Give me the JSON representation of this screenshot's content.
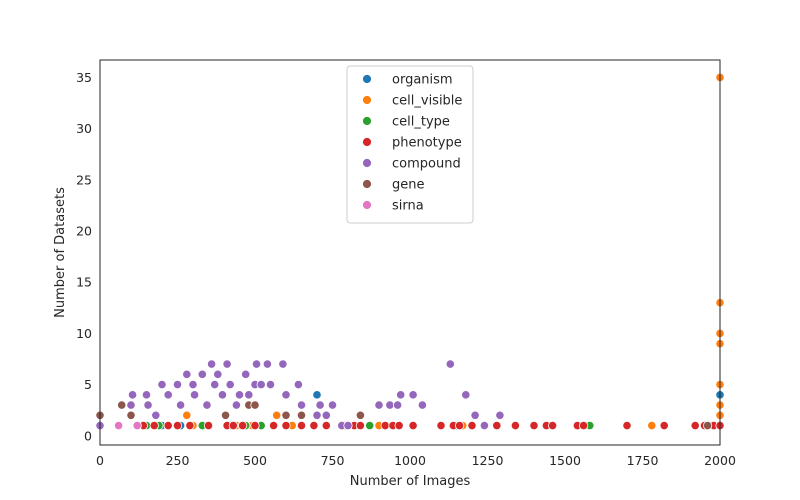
{
  "chart_data": {
    "type": "scatter",
    "title": "",
    "xlabel": "Number of Images",
    "ylabel": "Number of Datasets",
    "xlim": [
      0,
      2000
    ],
    "ylim": [
      -0.9,
      36.7
    ],
    "xticks": [
      "0",
      "250",
      "500",
      "750",
      "1000",
      "1250",
      "1500",
      "1750",
      "2000"
    ],
    "yticks": [
      "0",
      "5",
      "10",
      "15",
      "20",
      "25",
      "30",
      "35"
    ],
    "grid": false,
    "legend": "upper-center",
    "series": [
      {
        "name": "organism",
        "color": "#1f77b4",
        "points": [
          [
            200,
            1
          ],
          [
            260,
            1
          ],
          [
            300,
            1
          ],
          [
            420,
            1
          ],
          [
            700,
            4
          ],
          [
            1150,
            1
          ],
          [
            2000,
            4
          ],
          [
            2000,
            1
          ]
        ]
      },
      {
        "name": "cell_visible",
        "color": "#ff7f0e",
        "points": [
          [
            280,
            2
          ],
          [
            300,
            1
          ],
          [
            440,
            1
          ],
          [
            460,
            1
          ],
          [
            490,
            1
          ],
          [
            570,
            2
          ],
          [
            620,
            1
          ],
          [
            780,
            1
          ],
          [
            900,
            1
          ],
          [
            1170,
            1
          ],
          [
            1780,
            1
          ],
          [
            2000,
            35
          ],
          [
            2000,
            13
          ],
          [
            2000,
            10
          ],
          [
            2000,
            9
          ],
          [
            2000,
            5
          ],
          [
            2000,
            3
          ],
          [
            2000,
            2
          ],
          [
            2000,
            1
          ]
        ]
      },
      {
        "name": "cell_type",
        "color": "#2ca02c",
        "points": [
          [
            150,
            1
          ],
          [
            190,
            1
          ],
          [
            330,
            1
          ],
          [
            470,
            1
          ],
          [
            520,
            1
          ],
          [
            870,
            1
          ],
          [
            1580,
            1
          ]
        ]
      },
      {
        "name": "phenotype",
        "color": "#d62728",
        "points": [
          [
            140,
            1
          ],
          [
            175,
            1
          ],
          [
            220,
            1
          ],
          [
            250,
            1
          ],
          [
            290,
            1
          ],
          [
            350,
            1
          ],
          [
            410,
            1
          ],
          [
            430,
            1
          ],
          [
            460,
            1
          ],
          [
            500,
            1
          ],
          [
            560,
            1
          ],
          [
            600,
            1
          ],
          [
            650,
            1
          ],
          [
            690,
            1
          ],
          [
            730,
            1
          ],
          [
            790,
            1
          ],
          [
            820,
            1
          ],
          [
            840,
            1
          ],
          [
            920,
            1
          ],
          [
            945,
            1
          ],
          [
            965,
            1
          ],
          [
            1010,
            1
          ],
          [
            1100,
            1
          ],
          [
            1140,
            1
          ],
          [
            1160,
            1
          ],
          [
            1200,
            1
          ],
          [
            1280,
            1
          ],
          [
            1340,
            1
          ],
          [
            1400,
            1
          ],
          [
            1440,
            1
          ],
          [
            1460,
            1
          ],
          [
            1540,
            1
          ],
          [
            1560,
            1
          ],
          [
            1700,
            1
          ],
          [
            1820,
            1
          ],
          [
            1920,
            1
          ],
          [
            1950,
            1
          ],
          [
            1980,
            1
          ],
          [
            2000,
            1
          ]
        ]
      },
      {
        "name": "compound",
        "color": "#9467bd",
        "points": [
          [
            0,
            1
          ],
          [
            100,
            3
          ],
          [
            105,
            4
          ],
          [
            150,
            4
          ],
          [
            155,
            3
          ],
          [
            180,
            2
          ],
          [
            200,
            5
          ],
          [
            220,
            4
          ],
          [
            250,
            5
          ],
          [
            260,
            3
          ],
          [
            280,
            6
          ],
          [
            300,
            5
          ],
          [
            305,
            4
          ],
          [
            330,
            6
          ],
          [
            345,
            3
          ],
          [
            360,
            7
          ],
          [
            370,
            5
          ],
          [
            380,
            6
          ],
          [
            395,
            4
          ],
          [
            410,
            7
          ],
          [
            420,
            5
          ],
          [
            440,
            3
          ],
          [
            450,
            4
          ],
          [
            470,
            6
          ],
          [
            480,
            4
          ],
          [
            500,
            5
          ],
          [
            505,
            7
          ],
          [
            520,
            5
          ],
          [
            540,
            7
          ],
          [
            550,
            5
          ],
          [
            590,
            7
          ],
          [
            600,
            4
          ],
          [
            640,
            5
          ],
          [
            650,
            3
          ],
          [
            700,
            2
          ],
          [
            710,
            3
          ],
          [
            730,
            2
          ],
          [
            750,
            3
          ],
          [
            780,
            1
          ],
          [
            800,
            1
          ],
          [
            900,
            3
          ],
          [
            935,
            3
          ],
          [
            960,
            3
          ],
          [
            970,
            4
          ],
          [
            1010,
            4
          ],
          [
            1040,
            3
          ],
          [
            1130,
            7
          ],
          [
            1180,
            4
          ],
          [
            1210,
            2
          ],
          [
            1240,
            1
          ],
          [
            1290,
            2
          ]
        ]
      },
      {
        "name": "gene",
        "color": "#8c564b",
        "points": [
          [
            0,
            2
          ],
          [
            70,
            3
          ],
          [
            100,
            2
          ],
          [
            405,
            2
          ],
          [
            480,
            3
          ],
          [
            500,
            3
          ],
          [
            600,
            2
          ],
          [
            650,
            2
          ],
          [
            840,
            2
          ],
          [
            1960,
            1
          ]
        ]
      },
      {
        "name": "sirna",
        "color": "#e377c2",
        "points": [
          [
            60,
            1
          ],
          [
            120,
            1
          ]
        ]
      }
    ]
  }
}
